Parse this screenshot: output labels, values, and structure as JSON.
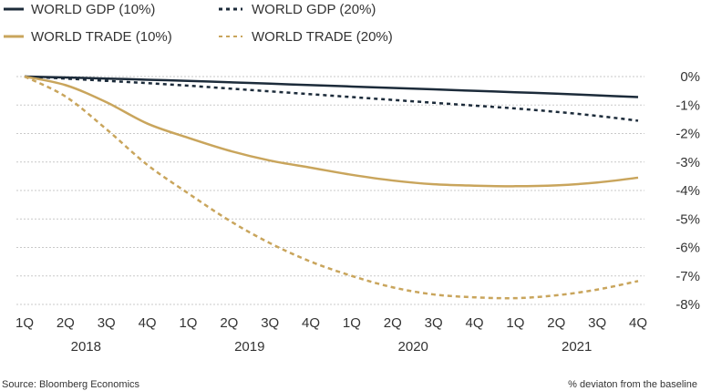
{
  "chart_data": {
    "type": "line",
    "title": "",
    "xlabel": "",
    "ylabel": "% deviaton from the baseline",
    "x_quarters": [
      "1Q",
      "2Q",
      "3Q",
      "4Q",
      "1Q",
      "2Q",
      "3Q",
      "4Q",
      "1Q",
      "2Q",
      "3Q",
      "4Q",
      "1Q",
      "2Q",
      "3Q",
      "4Q"
    ],
    "years": [
      "2018",
      "2019",
      "2020",
      "2021"
    ],
    "y_ticks": [
      "0%",
      "-1%",
      "-2%",
      "-3%",
      "-4%",
      "-5%",
      "-6%",
      "-7%",
      "-8%"
    ],
    "ylim": [
      -8,
      0
    ],
    "grid": true,
    "legend_position": "top-left",
    "series": [
      {
        "name": "WORLD GDP (10%)",
        "color": "#1c2b3a",
        "style": "solid",
        "values": [
          0,
          -0.03,
          -0.07,
          -0.11,
          -0.15,
          -0.2,
          -0.25,
          -0.3,
          -0.35,
          -0.4,
          -0.45,
          -0.5,
          -0.55,
          -0.6,
          -0.66,
          -0.72
        ]
      },
      {
        "name": "WORLD GDP (20%)",
        "color": "#1c2b3a",
        "style": "dashed",
        "values": [
          0,
          -0.07,
          -0.15,
          -0.23,
          -0.32,
          -0.42,
          -0.52,
          -0.62,
          -0.72,
          -0.82,
          -0.92,
          -1.02,
          -1.12,
          -1.24,
          -1.38,
          -1.55
        ]
      },
      {
        "name": "WORLD TRADE (10%)",
        "color": "#c9a55c",
        "style": "solid",
        "values": [
          0,
          -0.3,
          -0.9,
          -1.65,
          -2.15,
          -2.6,
          -2.95,
          -3.2,
          -3.45,
          -3.65,
          -3.78,
          -3.83,
          -3.85,
          -3.82,
          -3.72,
          -3.55
        ]
      },
      {
        "name": "WORLD TRADE (20%)",
        "color": "#c9a55c",
        "style": "dashed",
        "values": [
          0,
          -0.7,
          -1.85,
          -3.1,
          -4.1,
          -5.05,
          -5.85,
          -6.5,
          -7.0,
          -7.4,
          -7.65,
          -7.75,
          -7.78,
          -7.68,
          -7.48,
          -7.18
        ]
      }
    ]
  },
  "footer": {
    "source": "Source: Bloomberg Economics",
    "note": "% deviaton from the baseline"
  }
}
